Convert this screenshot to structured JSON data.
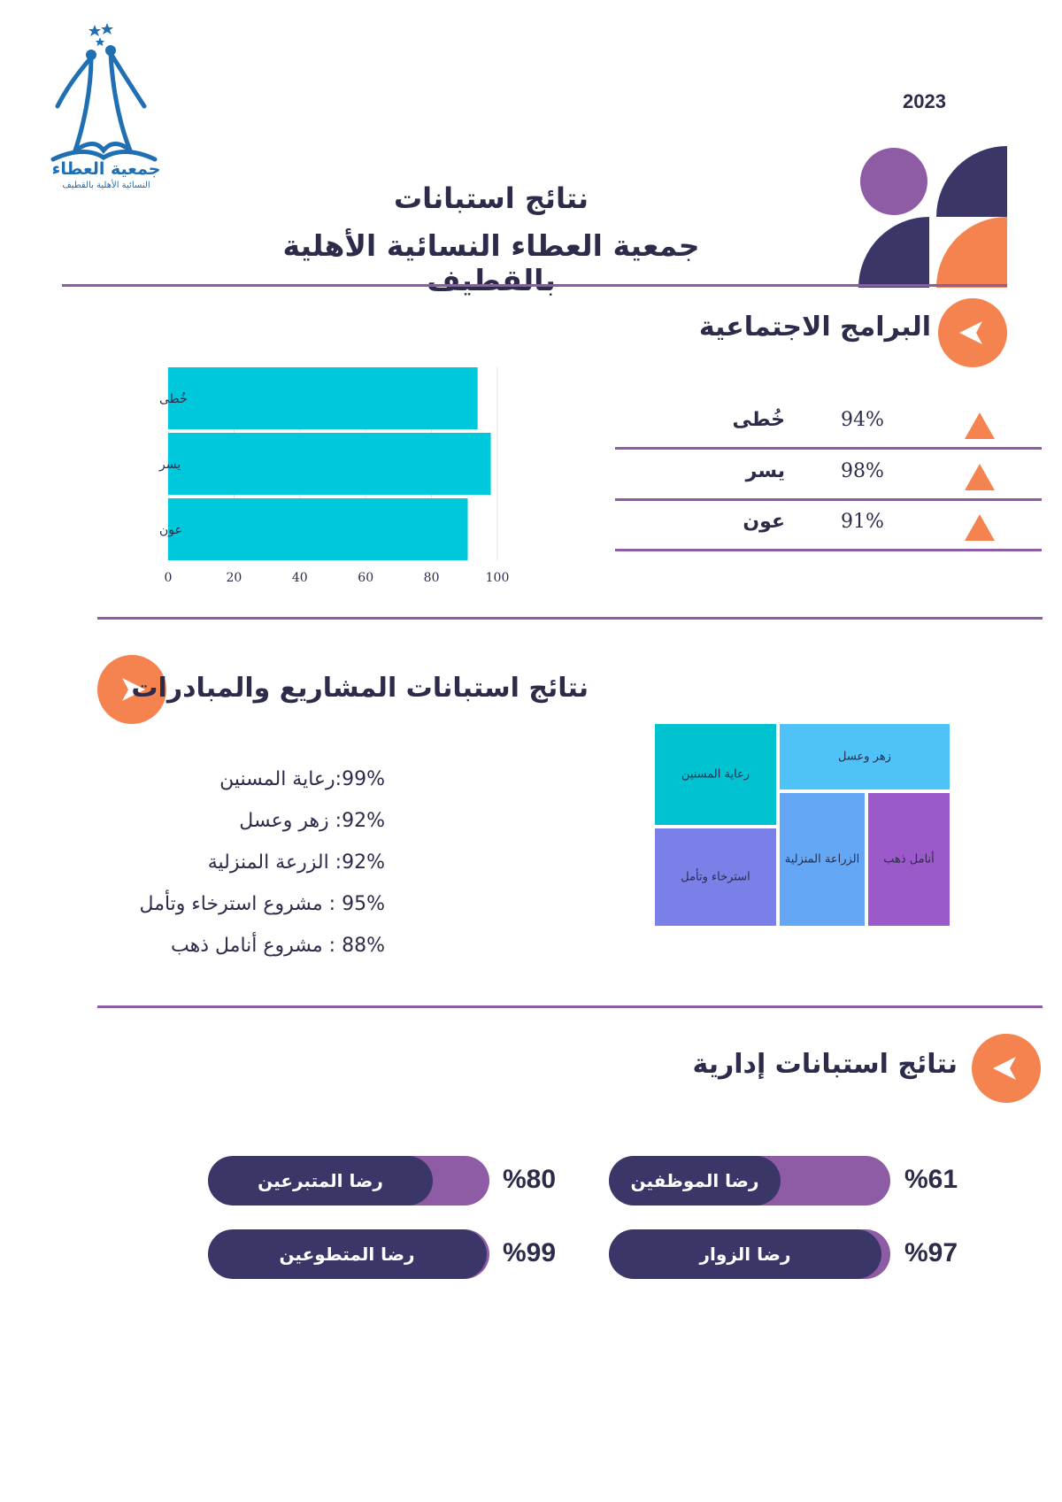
{
  "org": {
    "logo_name": "جمعية العطاء",
    "logo_sub": "النسائية الأهلية بالقطيف"
  },
  "header": {
    "year": "2023",
    "title_line1": "نتائج استبانات",
    "title_line2": "جمعية العطاء النسائية الأهلية بالقطيف"
  },
  "colors": {
    "accent": "#f4834f",
    "purple": "#8e5ba5",
    "navy": "#3a3668",
    "bar": "#00c8dc"
  },
  "social": {
    "title": "البرامج الاجتماعية",
    "programs": [
      {
        "name": "خُطى",
        "percent": "94%"
      },
      {
        "name": "يسر",
        "percent": "98%"
      },
      {
        "name": "عون",
        "percent": "91%"
      }
    ]
  },
  "chart_data": {
    "type": "bar",
    "orientation": "horizontal",
    "categories": [
      "خُطى",
      "يسر",
      "عون"
    ],
    "values": [
      94,
      98,
      91
    ],
    "xlim": [
      0,
      100
    ],
    "xticks": [
      "0",
      "20",
      "40",
      "60",
      "80",
      "100"
    ],
    "grid": true,
    "color": "#00c8dc"
  },
  "projects": {
    "title": "نتائج استبانات المشاريع والمبادرات",
    "items": [
      "99%:رعاية المسنين",
      "92%: زهر وعسل",
      "92%: الزرعة المنزلية",
      "95% : مشروع استرخاء وتأمل",
      "88% : مشروع أنامل ذهب"
    ],
    "treemap": [
      {
        "label": "رعاية المسنين",
        "color": "#00c2d1"
      },
      {
        "label": "زهر وعسل",
        "color": "#4fc3f7"
      },
      {
        "label": "استرخاء وتأمل",
        "color": "#7b80e8"
      },
      {
        "label": "الزراعة المنزلية",
        "color": "#64a8f5"
      },
      {
        "label": "أنامل ذهب",
        "color": "#9b59c9"
      }
    ]
  },
  "admin": {
    "title": "نتائج استبانات إدارية",
    "items": [
      {
        "label": "رضا الموظفين",
        "percent": "%61",
        "value": 61
      },
      {
        "label": "رضا المتبرعين",
        "percent": "%80",
        "value": 80
      },
      {
        "label": "رضا الزوار",
        "percent": "%97",
        "value": 97
      },
      {
        "label": "رضا المتطوعين",
        "percent": "%99",
        "value": 99
      }
    ]
  }
}
